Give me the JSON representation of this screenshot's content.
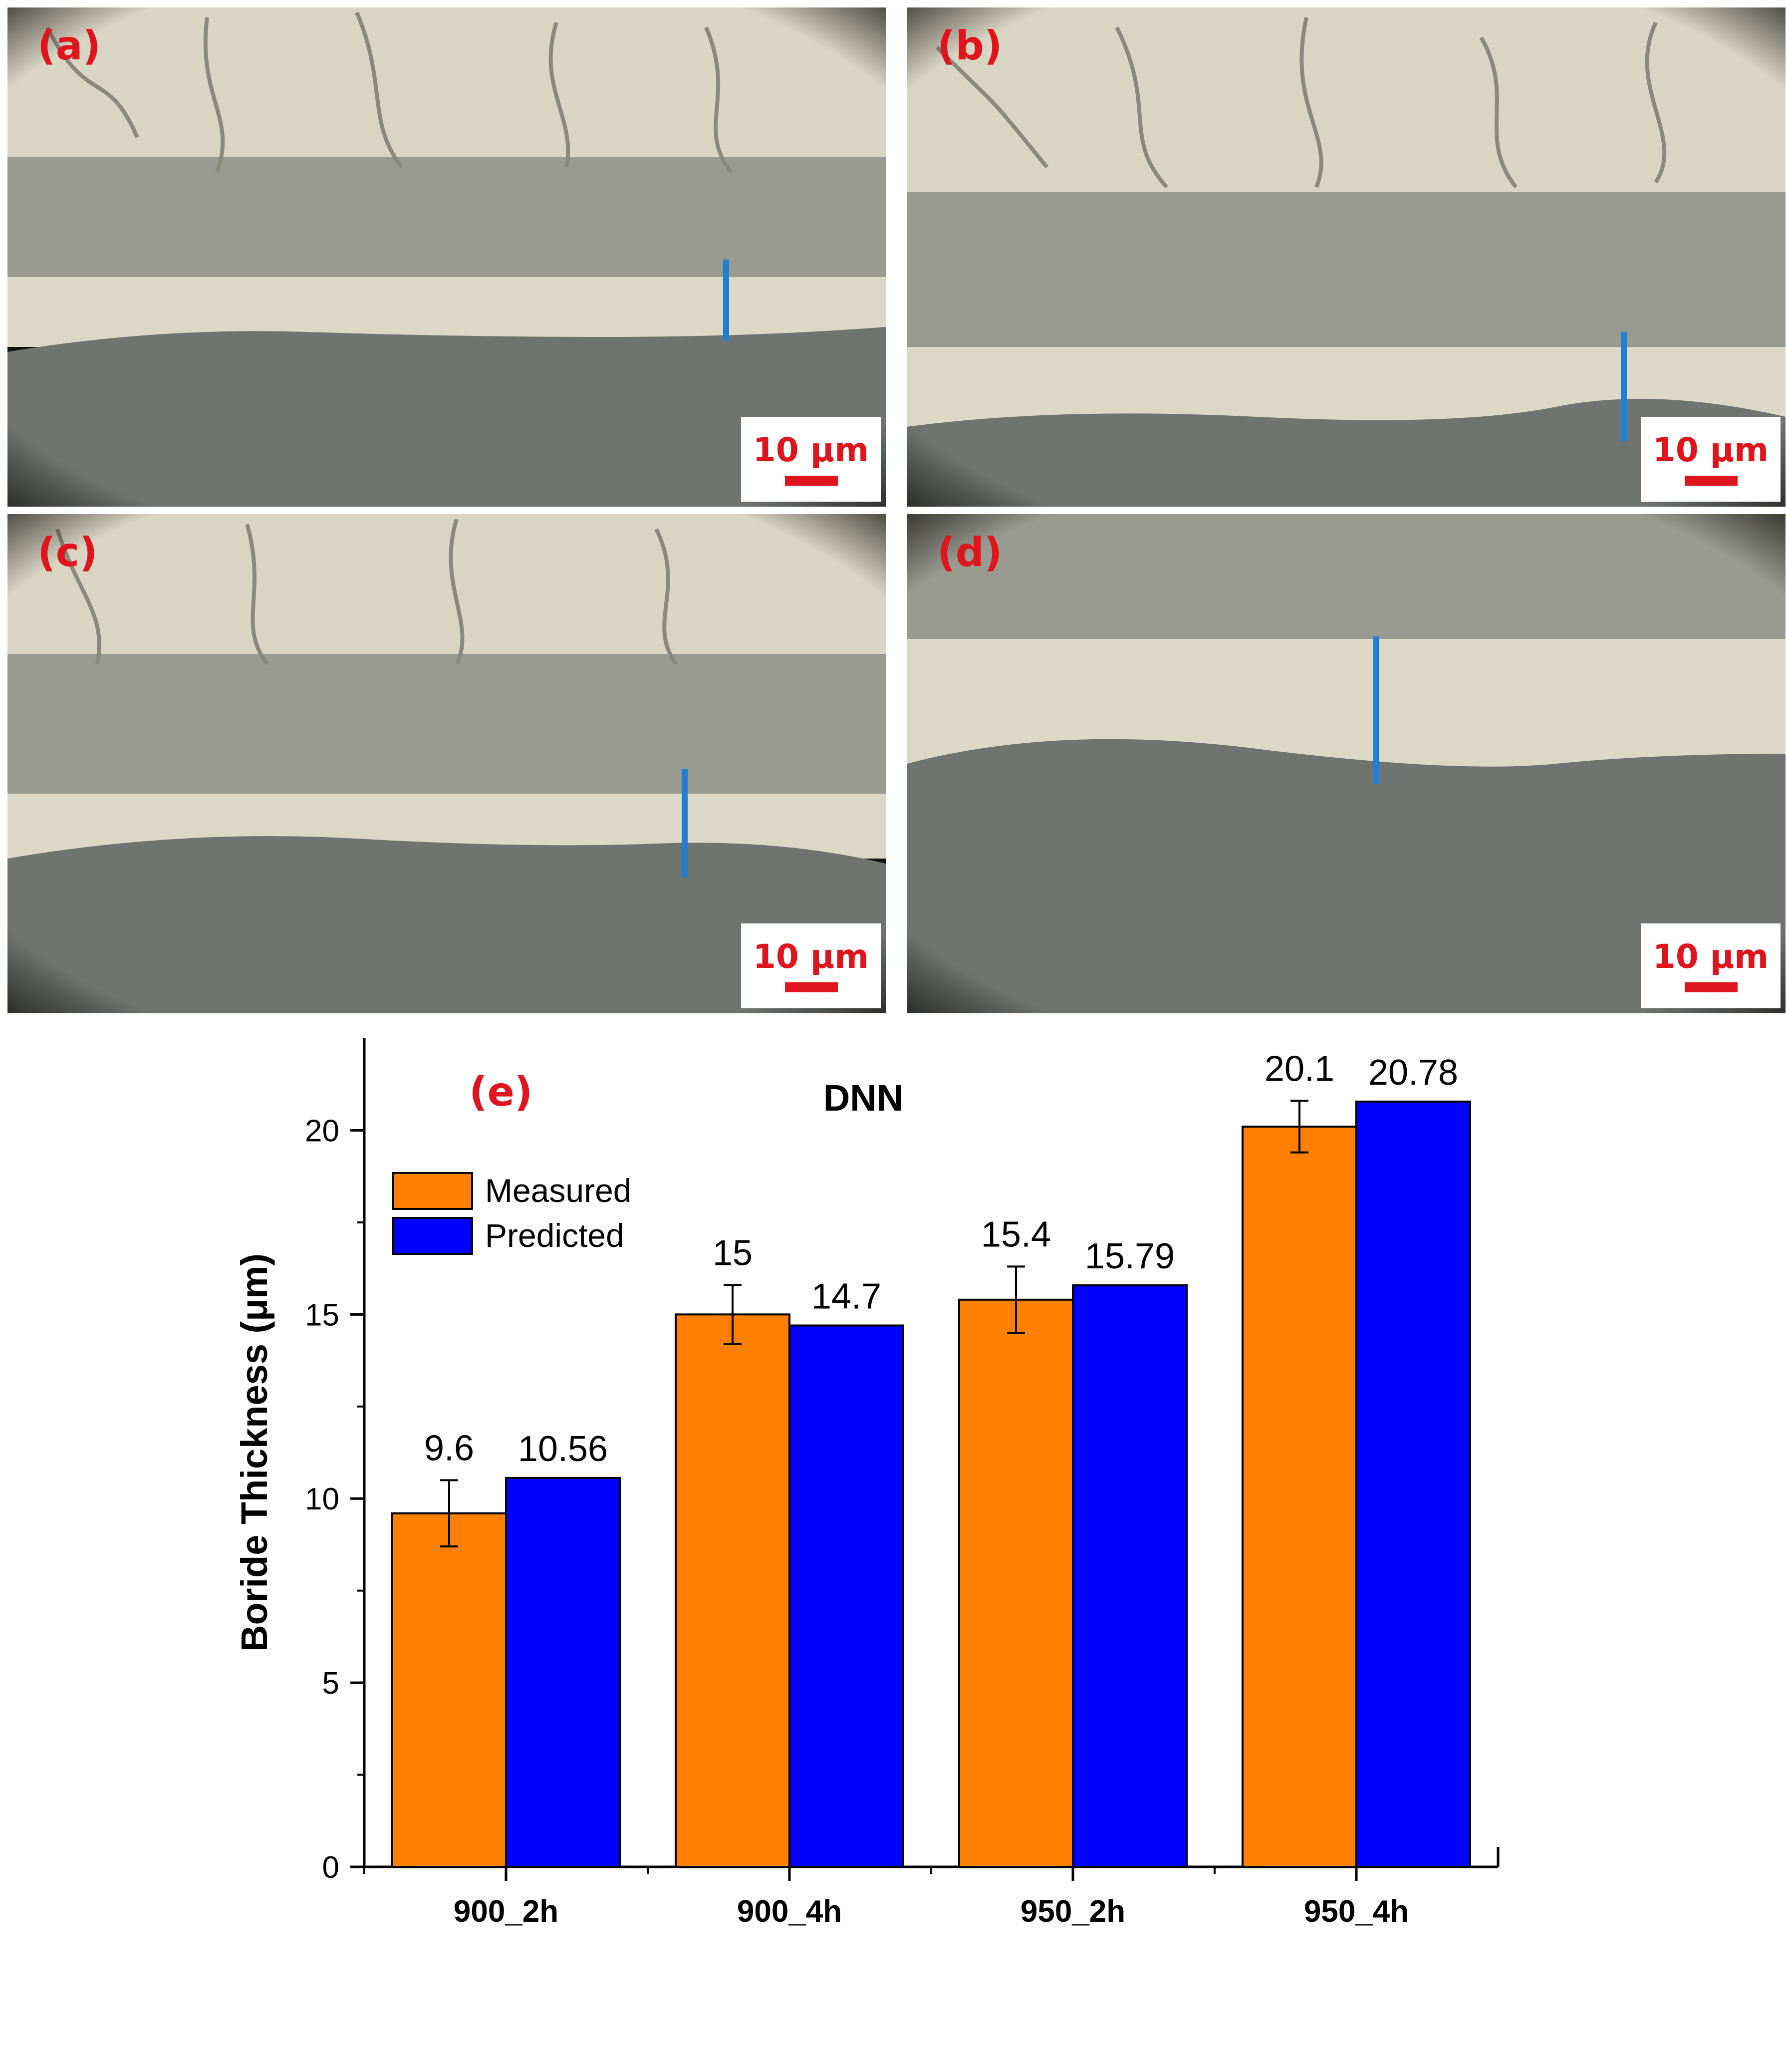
{
  "colors": {
    "label_red": "#e0141c",
    "measure_line": "#1f7fd4",
    "measured_bar": "#ff8000",
    "predicted_bar": "#0000ff",
    "micro_light": "#d9d5c3",
    "micro_dark": "#6f7471",
    "vignette": "#15150f"
  },
  "panels": [
    {
      "label": "(a)",
      "scale_text": "10 µm"
    },
    {
      "label": "(b)",
      "scale_text": "10 µm"
    },
    {
      "label": "(c)",
      "scale_text": "10 µm"
    },
    {
      "label": "(d)",
      "scale_text": "10 µm"
    }
  ],
  "chart_data": {
    "type": "bar",
    "panel_label": "(e)",
    "title": "DNN",
    "ylabel": "Boride Thickness (μm)",
    "xlabel": "",
    "categories": [
      "900_2h",
      "900_4h",
      "950_2h",
      "950_4h"
    ],
    "series": [
      {
        "name": "Measured",
        "values": [
          9.6,
          15,
          15.4,
          20.1
        ],
        "errors": [
          0.9,
          0.8,
          0.9,
          0.7
        ],
        "labels": [
          "9.6",
          "15",
          "15.4",
          "20.1"
        ]
      },
      {
        "name": "Predicted",
        "values": [
          10.56,
          14.7,
          15.79,
          20.78
        ],
        "labels": [
          "10.56",
          "14.7",
          "15.79",
          "20.78"
        ]
      }
    ],
    "ylim": [
      0,
      22.5
    ],
    "yticks": [
      0,
      5,
      10,
      15,
      20
    ],
    "legend_position": "top-left",
    "grid": false
  }
}
